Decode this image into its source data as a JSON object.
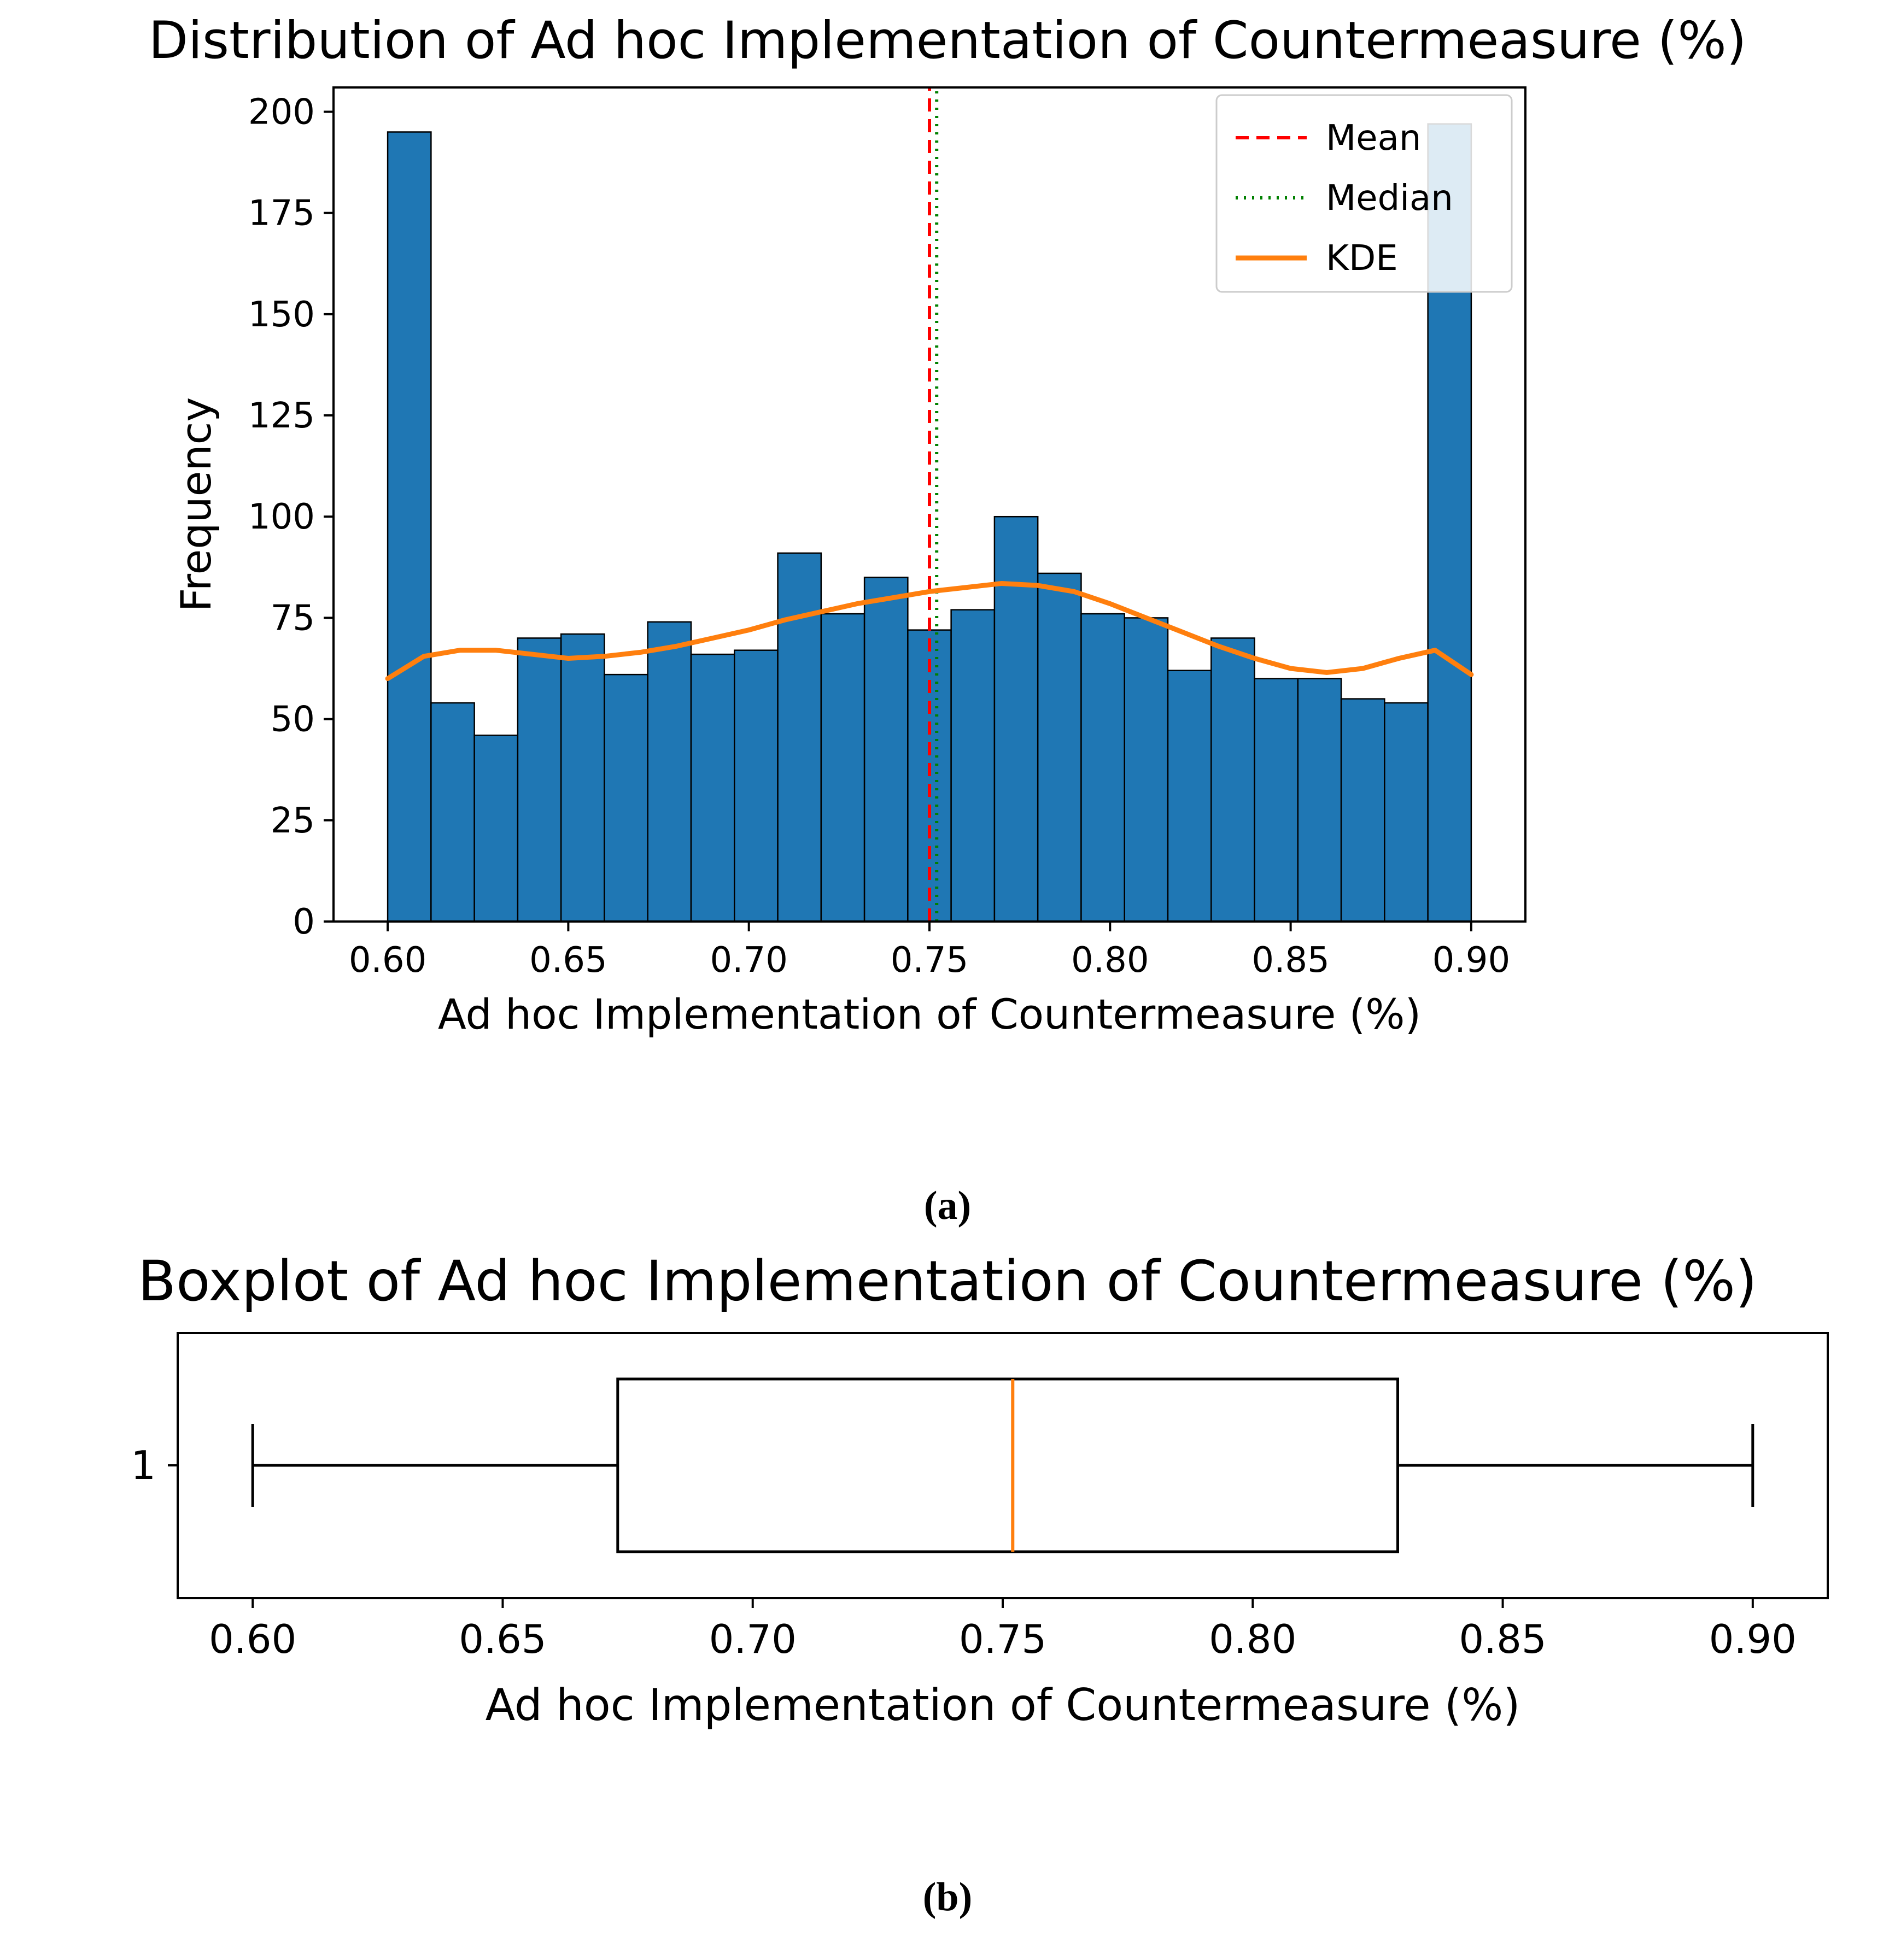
{
  "figure": {
    "panel_a_label": "(a)",
    "panel_b_label": "(b)"
  },
  "chart_data": [
    {
      "type": "histogram",
      "title": "Distribution of Ad hoc Implementation of Countermeasure (%)",
      "xlabel": "Ad hoc Implementation of Countermeasure (%)",
      "ylabel": "Frequency",
      "xlim": [
        0.585,
        0.915
      ],
      "ylim": [
        0,
        206
      ],
      "xtick_labels": [
        "0.60",
        "0.65",
        "0.70",
        "0.75",
        "0.80",
        "0.85",
        "0.90"
      ],
      "xtick_values": [
        0.6,
        0.65,
        0.7,
        0.75,
        0.8,
        0.85,
        0.9
      ],
      "ytick_values": [
        0,
        25,
        50,
        75,
        100,
        125,
        150,
        175,
        200
      ],
      "bins": {
        "start": 0.6,
        "width": 0.012
      },
      "frequencies": [
        195,
        54,
        46,
        70,
        71,
        61,
        74,
        66,
        67,
        91,
        76,
        85,
        72,
        77,
        100,
        86,
        76,
        75,
        62,
        70,
        60,
        60,
        55,
        54,
        197
      ],
      "bar_color": "#1f77b4",
      "bar_edge_color": "#000000",
      "mean": 0.75,
      "median": 0.752,
      "kde_x": [
        0.6,
        0.61,
        0.62,
        0.63,
        0.64,
        0.65,
        0.66,
        0.67,
        0.68,
        0.69,
        0.7,
        0.71,
        0.72,
        0.73,
        0.74,
        0.75,
        0.76,
        0.77,
        0.78,
        0.79,
        0.8,
        0.81,
        0.82,
        0.83,
        0.84,
        0.85,
        0.86,
        0.87,
        0.88,
        0.89,
        0.9
      ],
      "kde_y": [
        60,
        65.5,
        67,
        67,
        66,
        65,
        65.5,
        66.5,
        68,
        70,
        72,
        74.5,
        76.5,
        78.5,
        80,
        81.5,
        82.5,
        83.5,
        83,
        81.5,
        78.5,
        75,
        71.5,
        68,
        65,
        62.5,
        61.5,
        62.5,
        65,
        67,
        61
      ],
      "legend": [
        {
          "label": "Mean",
          "color": "#ff0000",
          "style": "dashed"
        },
        {
          "label": "Median",
          "color": "#008000",
          "style": "dotted"
        },
        {
          "label": "KDE",
          "color": "#ff7f0e",
          "style": "solid"
        }
      ]
    },
    {
      "type": "boxplot",
      "title": "Boxplot of Ad hoc Implementation of Countermeasure (%)",
      "xlabel": "Ad hoc Implementation of Countermeasure (%)",
      "xlim": [
        0.585,
        0.915
      ],
      "xtick_labels": [
        "0.60",
        "0.65",
        "0.70",
        "0.75",
        "0.80",
        "0.85",
        "0.90"
      ],
      "xtick_values": [
        0.6,
        0.65,
        0.7,
        0.75,
        0.8,
        0.85,
        0.9
      ],
      "ytick_label": "1",
      "stats": {
        "whisker_low": 0.6,
        "q1": 0.673,
        "median": 0.752,
        "q3": 0.829,
        "whisker_high": 0.9
      },
      "box_color": "#000000",
      "median_color": "#ff7f0e"
    }
  ]
}
